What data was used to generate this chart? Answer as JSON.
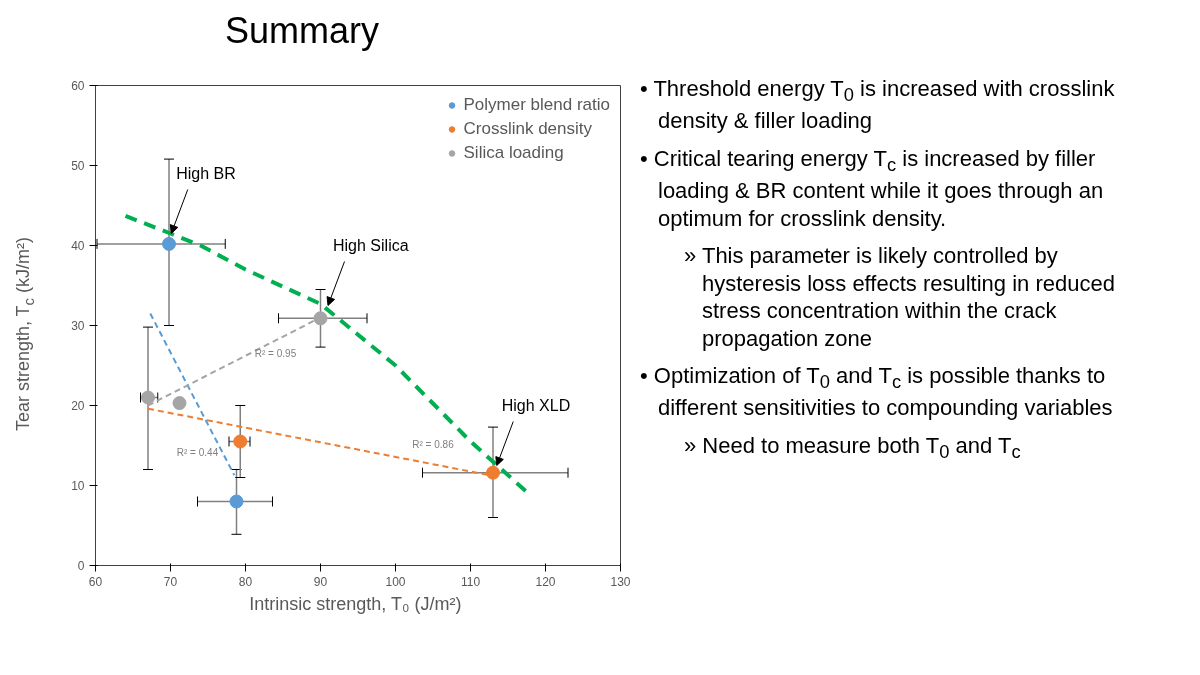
{
  "chart_data": {
    "type": "scatter",
    "title": "Summary",
    "xlabel": "Intrinsic strength, T₀  (J/m²)",
    "ylabel": "Tear strength, T$_{c}$  (kJ/m²)",
    "xlim": [
      60,
      130
    ],
    "xticks": [
      60,
      70,
      80,
      90,
      100,
      110,
      120,
      130
    ],
    "ylim": [
      0,
      60
    ],
    "yticks": [
      0,
      10,
      20,
      30,
      40,
      50,
      60
    ],
    "grid": false,
    "legend": "top right",
    "marker": "circle",
    "series": [
      {
        "name": "Polymer blend ratio",
        "color": "#5b9bd5",
        "x": [
          69.8,
          78.8
        ],
        "values": [
          40.2,
          8
        ],
        "xerrors": [
          [
            60.2,
            77.3
          ],
          [
            73.6,
            83.6
          ]
        ],
        "errors": [
          [
            30,
            50.8
          ],
          [
            3.9,
            12
          ]
        ]
      },
      {
        "name": "Crosslink density",
        "color": "#ed7d31",
        "x": [
          79.3,
          113
        ],
        "values": [
          15.5,
          11.6
        ],
        "xerrors": [
          [
            77.8,
            80.6
          ],
          [
            103.6,
            123
          ]
        ],
        "errors": [
          [
            11,
            20
          ],
          [
            6,
            17.3
          ]
        ]
      },
      {
        "name": "Silica loading",
        "color": "#a5a5a5",
        "x": [
          67,
          71.2,
          90
        ],
        "values": [
          21,
          20.3,
          30.9
        ],
        "xerrors": [
          [
            66,
            68.3
          ],
          null,
          [
            84.4,
            96.2
          ]
        ],
        "errors": [
          [
            12,
            29.8
          ],
          null,
          [
            27.3,
            34.5
          ]
        ]
      },
      {
        "type": "line",
        "marker": "none",
        "line_style": "dashed",
        "color": "#5b9bd5",
        "x": [
          67.3,
          78.5
        ],
        "values": [
          31.5,
          11.3
        ]
      },
      {
        "type": "line",
        "marker": "none",
        "line_style": "dashed",
        "color": "#ed7d31",
        "x": [
          67,
          113
        ],
        "values": [
          19.6,
          11.2
        ]
      },
      {
        "type": "line",
        "marker": "none",
        "line_style": "dashed",
        "color": "#a5a5a5",
        "x": [
          67,
          90
        ],
        "values": [
          20,
          31
        ]
      },
      {
        "type": "line",
        "marker": "none",
        "line_style": "dashed",
        "color": "#00b050",
        "x": [
          64,
          70,
          74,
          80,
          90,
          100,
          110,
          117.5
        ],
        "values": [
          43.7,
          41.5,
          40,
          37,
          32.7,
          25,
          15.5,
          9.2
        ]
      }
    ],
    "annotations": [
      {
        "text": "High BR",
        "x": 70.1,
        "y": 41.5
      },
      {
        "text": "High Silica",
        "x": 91,
        "y": 32.5
      },
      {
        "text": "High XLD",
        "x": 113.5,
        "y": 12.5
      },
      "R² = 0.44",
      "R² = 0.95",
      "R² = 0.86",
      "• Threshold energy T$_{0}$ is increased with crosslink density & filler loading",
      "• Critical tearing energy T$_{c}$ is increased by filler loading & BR content while it goes through an optimum for crosslink density.",
      "» This parameter is likely controlled by hysteresis loss effects resulting in reduced stress concentration within the crack propagation zone",
      "• Optimization of T$_{0}$ and T$_{c}$ is possible thanks to different sensitivities to compounding variables",
      "» Need to measure both T$_{0}$ and T$_{c}$"
    ]
  }
}
